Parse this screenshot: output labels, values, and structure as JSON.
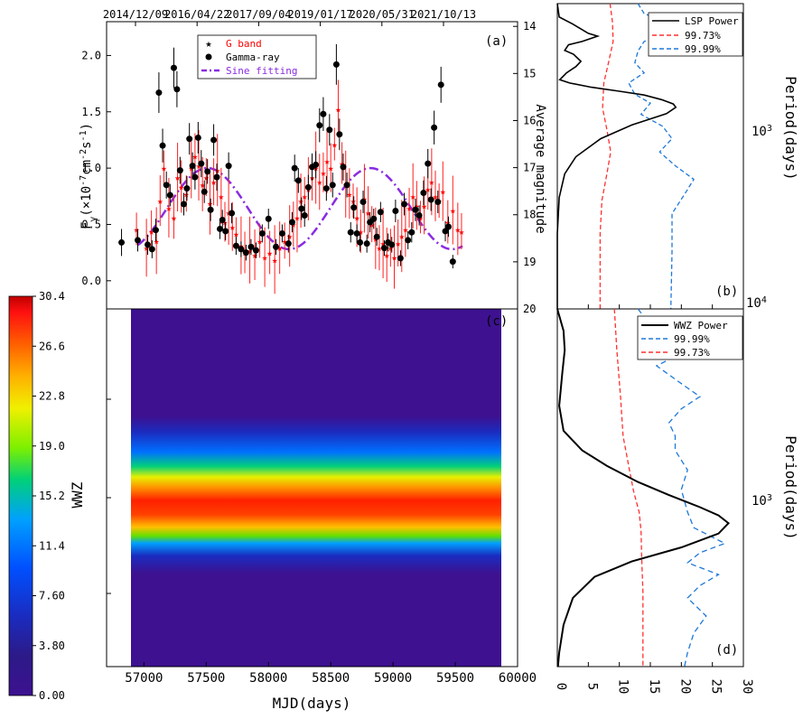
{
  "chart_data": [
    {
      "panel": "a",
      "type": "scatter",
      "panel_label": "(a)",
      "ylabel": "F_γ(×10^-7 cm^-2 s^-1)",
      "right_ylabel": "Average magnitude",
      "top_ticks": [
        "2014/12/09",
        "2016/04/22",
        "2017/09/04",
        "2019/01/17",
        "2020/05/31",
        "2021/10/13"
      ],
      "left_yticks": [
        "0.0",
        "0.5",
        "1.0",
        "1.5",
        "2.0"
      ],
      "right_yticks": [
        "14",
        "15",
        "16",
        "17",
        "18",
        "19",
        "20"
      ],
      "xlim": [
        56700,
        60000
      ],
      "ylim": [
        -0.25,
        2.3
      ],
      "right_ylim": [
        20,
        13.9
      ],
      "legend": [
        {
          "label": "G band",
          "marker": "star",
          "color": "#ff0000"
        },
        {
          "label": "Gamma-ray",
          "marker": "circle",
          "color": "#000000"
        },
        {
          "label": "Sine fitting",
          "marker": "dashdot",
          "color": "#8a2be2"
        }
      ],
      "gamma": [
        [
          56820,
          0.34,
          0.12
        ],
        [
          56950,
          0.36,
          0.1
        ],
        [
          57030,
          0.32,
          0.09
        ],
        [
          57065,
          0.28,
          0.08
        ],
        [
          57095,
          0.45,
          0.1
        ],
        [
          57120,
          1.67,
          0.18
        ],
        [
          57150,
          1.2,
          0.15
        ],
        [
          57180,
          0.85,
          0.12
        ],
        [
          57210,
          0.76,
          0.1
        ],
        [
          57240,
          1.89,
          0.18
        ],
        [
          57265,
          1.7,
          0.16
        ],
        [
          57290,
          0.98,
          0.12
        ],
        [
          57320,
          0.68,
          0.1
        ],
        [
          57345,
          0.82,
          0.11
        ],
        [
          57365,
          1.26,
          0.14
        ],
        [
          57390,
          1.02,
          0.12
        ],
        [
          57410,
          0.92,
          0.11
        ],
        [
          57435,
          1.27,
          0.14
        ],
        [
          57460,
          1.04,
          0.12
        ],
        [
          57485,
          0.79,
          0.1
        ],
        [
          57510,
          0.97,
          0.11
        ],
        [
          57535,
          0.63,
          0.1
        ],
        [
          57560,
          1.25,
          0.14
        ],
        [
          57585,
          0.92,
          0.12
        ],
        [
          57610,
          0.46,
          0.09
        ],
        [
          57630,
          0.54,
          0.09
        ],
        [
          57655,
          0.44,
          0.08
        ],
        [
          57680,
          1.02,
          0.12
        ],
        [
          57705,
          0.6,
          0.09
        ],
        [
          57740,
          0.31,
          0.08
        ],
        [
          57780,
          0.28,
          0.07
        ],
        [
          57820,
          0.25,
          0.07
        ],
        [
          57860,
          0.3,
          0.07
        ],
        [
          57900,
          0.27,
          0.07
        ],
        [
          57950,
          0.42,
          0.08
        ],
        [
          58000,
          0.55,
          0.09
        ],
        [
          58060,
          0.3,
          0.07
        ],
        [
          58110,
          0.42,
          0.08
        ],
        [
          58160,
          0.33,
          0.08
        ],
        [
          58190,
          0.52,
          0.09
        ],
        [
          58210,
          1.0,
          0.12
        ],
        [
          58240,
          0.89,
          0.11
        ],
        [
          58265,
          0.64,
          0.1
        ],
        [
          58290,
          0.58,
          0.1
        ],
        [
          58320,
          0.83,
          0.11
        ],
        [
          58350,
          1.01,
          0.12
        ],
        [
          58380,
          1.03,
          0.12
        ],
        [
          58410,
          1.38,
          0.15
        ],
        [
          58440,
          1.48,
          0.15
        ],
        [
          58465,
          0.82,
          0.11
        ],
        [
          58490,
          1.34,
          0.14
        ],
        [
          58515,
          0.85,
          0.11
        ],
        [
          58545,
          1.92,
          0.18
        ],
        [
          58570,
          1.3,
          0.14
        ],
        [
          58600,
          1.01,
          0.12
        ],
        [
          58630,
          0.85,
          0.11
        ],
        [
          58660,
          0.43,
          0.09
        ],
        [
          58685,
          0.65,
          0.1
        ],
        [
          58710,
          0.42,
          0.08
        ],
        [
          58735,
          0.34,
          0.08
        ],
        [
          58760,
          0.7,
          0.1
        ],
        [
          58790,
          0.33,
          0.08
        ],
        [
          58815,
          0.52,
          0.09
        ],
        [
          58845,
          0.55,
          0.09
        ],
        [
          58870,
          0.39,
          0.08
        ],
        [
          58900,
          0.61,
          0.09
        ],
        [
          58930,
          0.29,
          0.07
        ],
        [
          58960,
          0.34,
          0.08
        ],
        [
          58990,
          0.32,
          0.07
        ],
        [
          59020,
          0.62,
          0.1
        ],
        [
          59060,
          0.2,
          0.07
        ],
        [
          59090,
          0.68,
          0.1
        ],
        [
          59120,
          0.36,
          0.08
        ],
        [
          59150,
          0.43,
          0.09
        ],
        [
          59180,
          0.63,
          0.1
        ],
        [
          59210,
          0.58,
          0.09
        ],
        [
          59245,
          0.78,
          0.11
        ],
        [
          59280,
          1.04,
          0.13
        ],
        [
          59305,
          0.72,
          0.1
        ],
        [
          59330,
          1.36,
          0.15
        ],
        [
          59360,
          0.7,
          0.1
        ],
        [
          59385,
          1.74,
          0.16
        ],
        [
          59420,
          0.44,
          0.09
        ],
        [
          59445,
          0.48,
          0.09
        ],
        [
          59480,
          0.17,
          0.06
        ]
      ],
      "gband_mag": [
        [
          56940,
          18.3
        ],
        [
          57020,
          18.7
        ],
        [
          57060,
          18.35
        ],
        [
          57100,
          18.55
        ],
        [
          57130,
          17.7
        ],
        [
          57160,
          17.0
        ],
        [
          57200,
          17.85
        ],
        [
          57240,
          18.05
        ],
        [
          57270,
          17.2
        ],
        [
          57300,
          17.4
        ],
        [
          57340,
          17.55
        ],
        [
          57380,
          17.0
        ],
        [
          57410,
          16.75
        ],
        [
          57440,
          16.95
        ],
        [
          57470,
          17.35
        ],
        [
          57500,
          17.2
        ],
        [
          57530,
          17.75
        ],
        [
          57560,
          17.3
        ],
        [
          57590,
          17.05
        ],
        [
          57620,
          17.6
        ],
        [
          57650,
          18.15
        ],
        [
          57680,
          17.95
        ],
        [
          57710,
          18.25
        ],
        [
          57740,
          18.4
        ],
        [
          57780,
          18.65
        ],
        [
          57810,
          18.8
        ],
        [
          57850,
          18.75
        ],
        [
          57890,
          18.85
        ],
        [
          57930,
          18.55
        ],
        [
          57970,
          18.9
        ],
        [
          58010,
          18.8
        ],
        [
          58050,
          18.95
        ],
        [
          58090,
          18.7
        ],
        [
          58130,
          18.55
        ],
        [
          58170,
          18.45
        ],
        [
          58200,
          18.2
        ],
        [
          58230,
          18.05
        ],
        [
          58260,
          17.7
        ],
        [
          58290,
          17.6
        ],
        [
          58320,
          17.45
        ],
        [
          58350,
          17.2
        ],
        [
          58380,
          17.0
        ],
        [
          58410,
          17.3
        ],
        [
          58440,
          17.1
        ],
        [
          58470,
          16.85
        ],
        [
          58500,
          17.0
        ],
        [
          58530,
          16.5
        ],
        [
          58560,
          15.75
        ],
        [
          58590,
          16.9
        ],
        [
          58620,
          17.35
        ],
        [
          58650,
          17.55
        ],
        [
          58680,
          17.7
        ],
        [
          58710,
          18.05
        ],
        [
          58740,
          18.35
        ],
        [
          58770,
          17.65
        ],
        [
          58800,
          17.95
        ],
        [
          58830,
          18.2
        ],
        [
          58860,
          18.5
        ],
        [
          58890,
          18.7
        ],
        [
          58920,
          18.6
        ],
        [
          58950,
          18.85
        ],
        [
          58980,
          18.7
        ],
        [
          59010,
          18.9
        ],
        [
          59040,
          18.6
        ],
        [
          59070,
          18.45
        ],
        [
          59100,
          18.3
        ],
        [
          59130,
          17.85
        ],
        [
          59160,
          17.6
        ],
        [
          59190,
          17.8
        ],
        [
          59220,
          18.05
        ],
        [
          59250,
          17.8
        ],
        [
          59280,
          17.45
        ],
        [
          59310,
          17.3
        ],
        [
          59340,
          17.6
        ],
        [
          59370,
          17.7
        ],
        [
          59400,
          17.5
        ],
        [
          59440,
          18.15
        ],
        [
          59480,
          17.9
        ],
        [
          59520,
          18.3
        ],
        [
          59550,
          18.35
        ]
      ],
      "sine": {
        "mean": 0.64,
        "amplitude": 0.36,
        "period_days": 1310,
        "peak_mjd": 57510,
        "x_range": [
          56950,
          59560
        ]
      }
    },
    {
      "panel": "b",
      "type": "line",
      "panel_label": "(b)",
      "ylabel": "Period(days)",
      "yticks": [
        "10^3",
        "10^4"
      ],
      "xlim": [
        0,
        30
      ],
      "yscale": "log",
      "legend": [
        {
          "label": "LSP Power",
          "color": "#000000",
          "style": "solid"
        },
        {
          "label": "99.73%",
          "color": "#ff3030",
          "style": "dashed"
        },
        {
          "label": "99.99%",
          "color": "#1e78d8",
          "style": "dashed"
        }
      ],
      "lsp": [
        [
          0,
          340
        ],
        [
          0.3,
          395
        ],
        [
          2.5,
          428
        ],
        [
          5,
          475
        ],
        [
          6.5,
          490
        ],
        [
          4,
          520
        ],
        [
          1.8,
          540
        ],
        [
          1.2,
          575
        ],
        [
          2.6,
          600
        ],
        [
          3.8,
          650
        ],
        [
          3,
          690
        ],
        [
          1.5,
          740
        ],
        [
          0.4,
          800
        ],
        [
          2.0,
          830
        ],
        [
          5.5,
          870
        ],
        [
          10,
          910
        ],
        [
          14,
          950
        ],
        [
          16.8,
          1000
        ],
        [
          18.7,
          1050
        ],
        [
          19.1,
          1090
        ],
        [
          17.6,
          1170
        ],
        [
          12,
          1330
        ],
        [
          7,
          1550
        ],
        [
          3,
          1900
        ],
        [
          1.2,
          2300
        ],
        [
          0.3,
          3000
        ],
        [
          0,
          4500
        ],
        [
          0,
          8000
        ],
        [
          0,
          10500
        ]
      ],
      "c9973": [
        [
          8.5,
          340
        ],
        [
          8.9,
          420
        ],
        [
          9,
          520
        ],
        [
          8.3,
          650
        ],
        [
          7.5,
          830
        ],
        [
          7.3,
          1100
        ],
        [
          8,
          1400
        ],
        [
          8.6,
          1800
        ],
        [
          8,
          2300
        ],
        [
          7.2,
          3100
        ],
        [
          6.9,
          4500
        ],
        [
          6.9,
          10500
        ]
      ],
      "c9999": [
        [
          13,
          340
        ],
        [
          14,
          380
        ],
        [
          17.5,
          420
        ],
        [
          19,
          470
        ],
        [
          14,
          520
        ],
        [
          13,
          580
        ],
        [
          12.5,
          660
        ],
        [
          14,
          740
        ],
        [
          11.5,
          830
        ],
        [
          12.5,
          940
        ],
        [
          15,
          1040
        ],
        [
          13.5,
          1180
        ],
        [
          17,
          1350
        ],
        [
          18.5,
          1550
        ],
        [
          16.5,
          1800
        ],
        [
          19,
          2100
        ],
        [
          22,
          2450
        ],
        [
          20.5,
          2900
        ],
        [
          18.5,
          3600
        ],
        [
          18.5,
          5500
        ],
        [
          18.3,
          10500
        ]
      ]
    },
    {
      "panel": "c",
      "type": "heatmap",
      "panel_label": "(c)",
      "xlabel": "MJD(days)",
      "colorbar_label": "WWZ",
      "xticks": [
        "57000",
        "57500",
        "58000",
        "58500",
        "59000",
        "59500",
        "60000"
      ],
      "xlim": [
        56700,
        60000
      ],
      "data_x_range": [
        56950,
        59560
      ],
      "colorbar_ticks": [
        "0.00",
        "3.80",
        "7.60",
        "11.4",
        "15.2",
        "19.0",
        "22.8",
        "26.6",
        "30.4"
      ],
      "colorbar_range": [
        0,
        30.4
      ],
      "yscale": "log",
      "colormap": [
        "#3d1190",
        "#321a8c",
        "#1a2cc0",
        "#0050ff",
        "#00a0ff",
        "#00d07a",
        "#7cf000",
        "#f0f000",
        "#ffb000",
        "#ff6000",
        "#ff1010",
        "#c00000"
      ]
    },
    {
      "panel": "d",
      "type": "line",
      "panel_label": "(d)",
      "ylabel": "Period(days)",
      "xticks": [
        "0",
        "5",
        "10",
        "15",
        "20",
        "25",
        "30"
      ],
      "yticks": [
        "10^3"
      ],
      "xlim": [
        0,
        30
      ],
      "yscale": "log",
      "legend": [
        {
          "label": "WWZ Power",
          "color": "#000000",
          "style": "solid"
        },
        {
          "label": "99.99%",
          "color": "#1e78d8",
          "style": "dashed"
        },
        {
          "label": "99.73%",
          "color": "#ff3030",
          "style": "dashed"
        }
      ],
      "wwz": [
        [
          0,
          340
        ],
        [
          1.0,
          385
        ],
        [
          1.2,
          430
        ],
        [
          0.8,
          490
        ],
        [
          0.3,
          590
        ],
        [
          1.0,
          680
        ],
        [
          4,
          760
        ],
        [
          8,
          830
        ],
        [
          13,
          910
        ],
        [
          18,
          980
        ],
        [
          23,
          1050
        ],
        [
          26,
          1100
        ],
        [
          27.6,
          1150
        ],
        [
          26,
          1220
        ],
        [
          20,
          1320
        ],
        [
          12,
          1430
        ],
        [
          6,
          1560
        ],
        [
          2.5,
          1760
        ],
        [
          1,
          2050
        ],
        [
          0.3,
          2400
        ],
        [
          0.1,
          2600
        ]
      ],
      "c9999": [
        [
          13,
          340
        ],
        [
          16,
          390
        ],
        [
          21,
          430
        ],
        [
          16,
          470
        ],
        [
          20,
          520
        ],
        [
          23,
          560
        ],
        [
          20,
          600
        ],
        [
          18,
          650
        ],
        [
          19,
          700
        ],
        [
          19,
          760
        ],
        [
          21,
          850
        ],
        [
          20,
          950
        ],
        [
          21,
          1080
        ],
        [
          22,
          1180
        ],
        [
          27,
          1290
        ],
        [
          23,
          1360
        ],
        [
          21,
          1440
        ],
        [
          26,
          1540
        ],
        [
          23,
          1640
        ],
        [
          21,
          1760
        ],
        [
          24,
          1950
        ],
        [
          22,
          2150
        ],
        [
          21,
          2400
        ],
        [
          20.5,
          2600
        ]
      ],
      "c9973": [
        [
          9.2,
          340
        ],
        [
          9.6,
          430
        ],
        [
          10.2,
          560
        ],
        [
          10.6,
          700
        ],
        [
          11.5,
          830
        ],
        [
          12.3,
          960
        ],
        [
          13.2,
          1080
        ],
        [
          13.5,
          1200
        ],
        [
          13.6,
          1400
        ],
        [
          13.8,
          1700
        ],
        [
          13.8,
          2600
        ]
      ]
    }
  ]
}
